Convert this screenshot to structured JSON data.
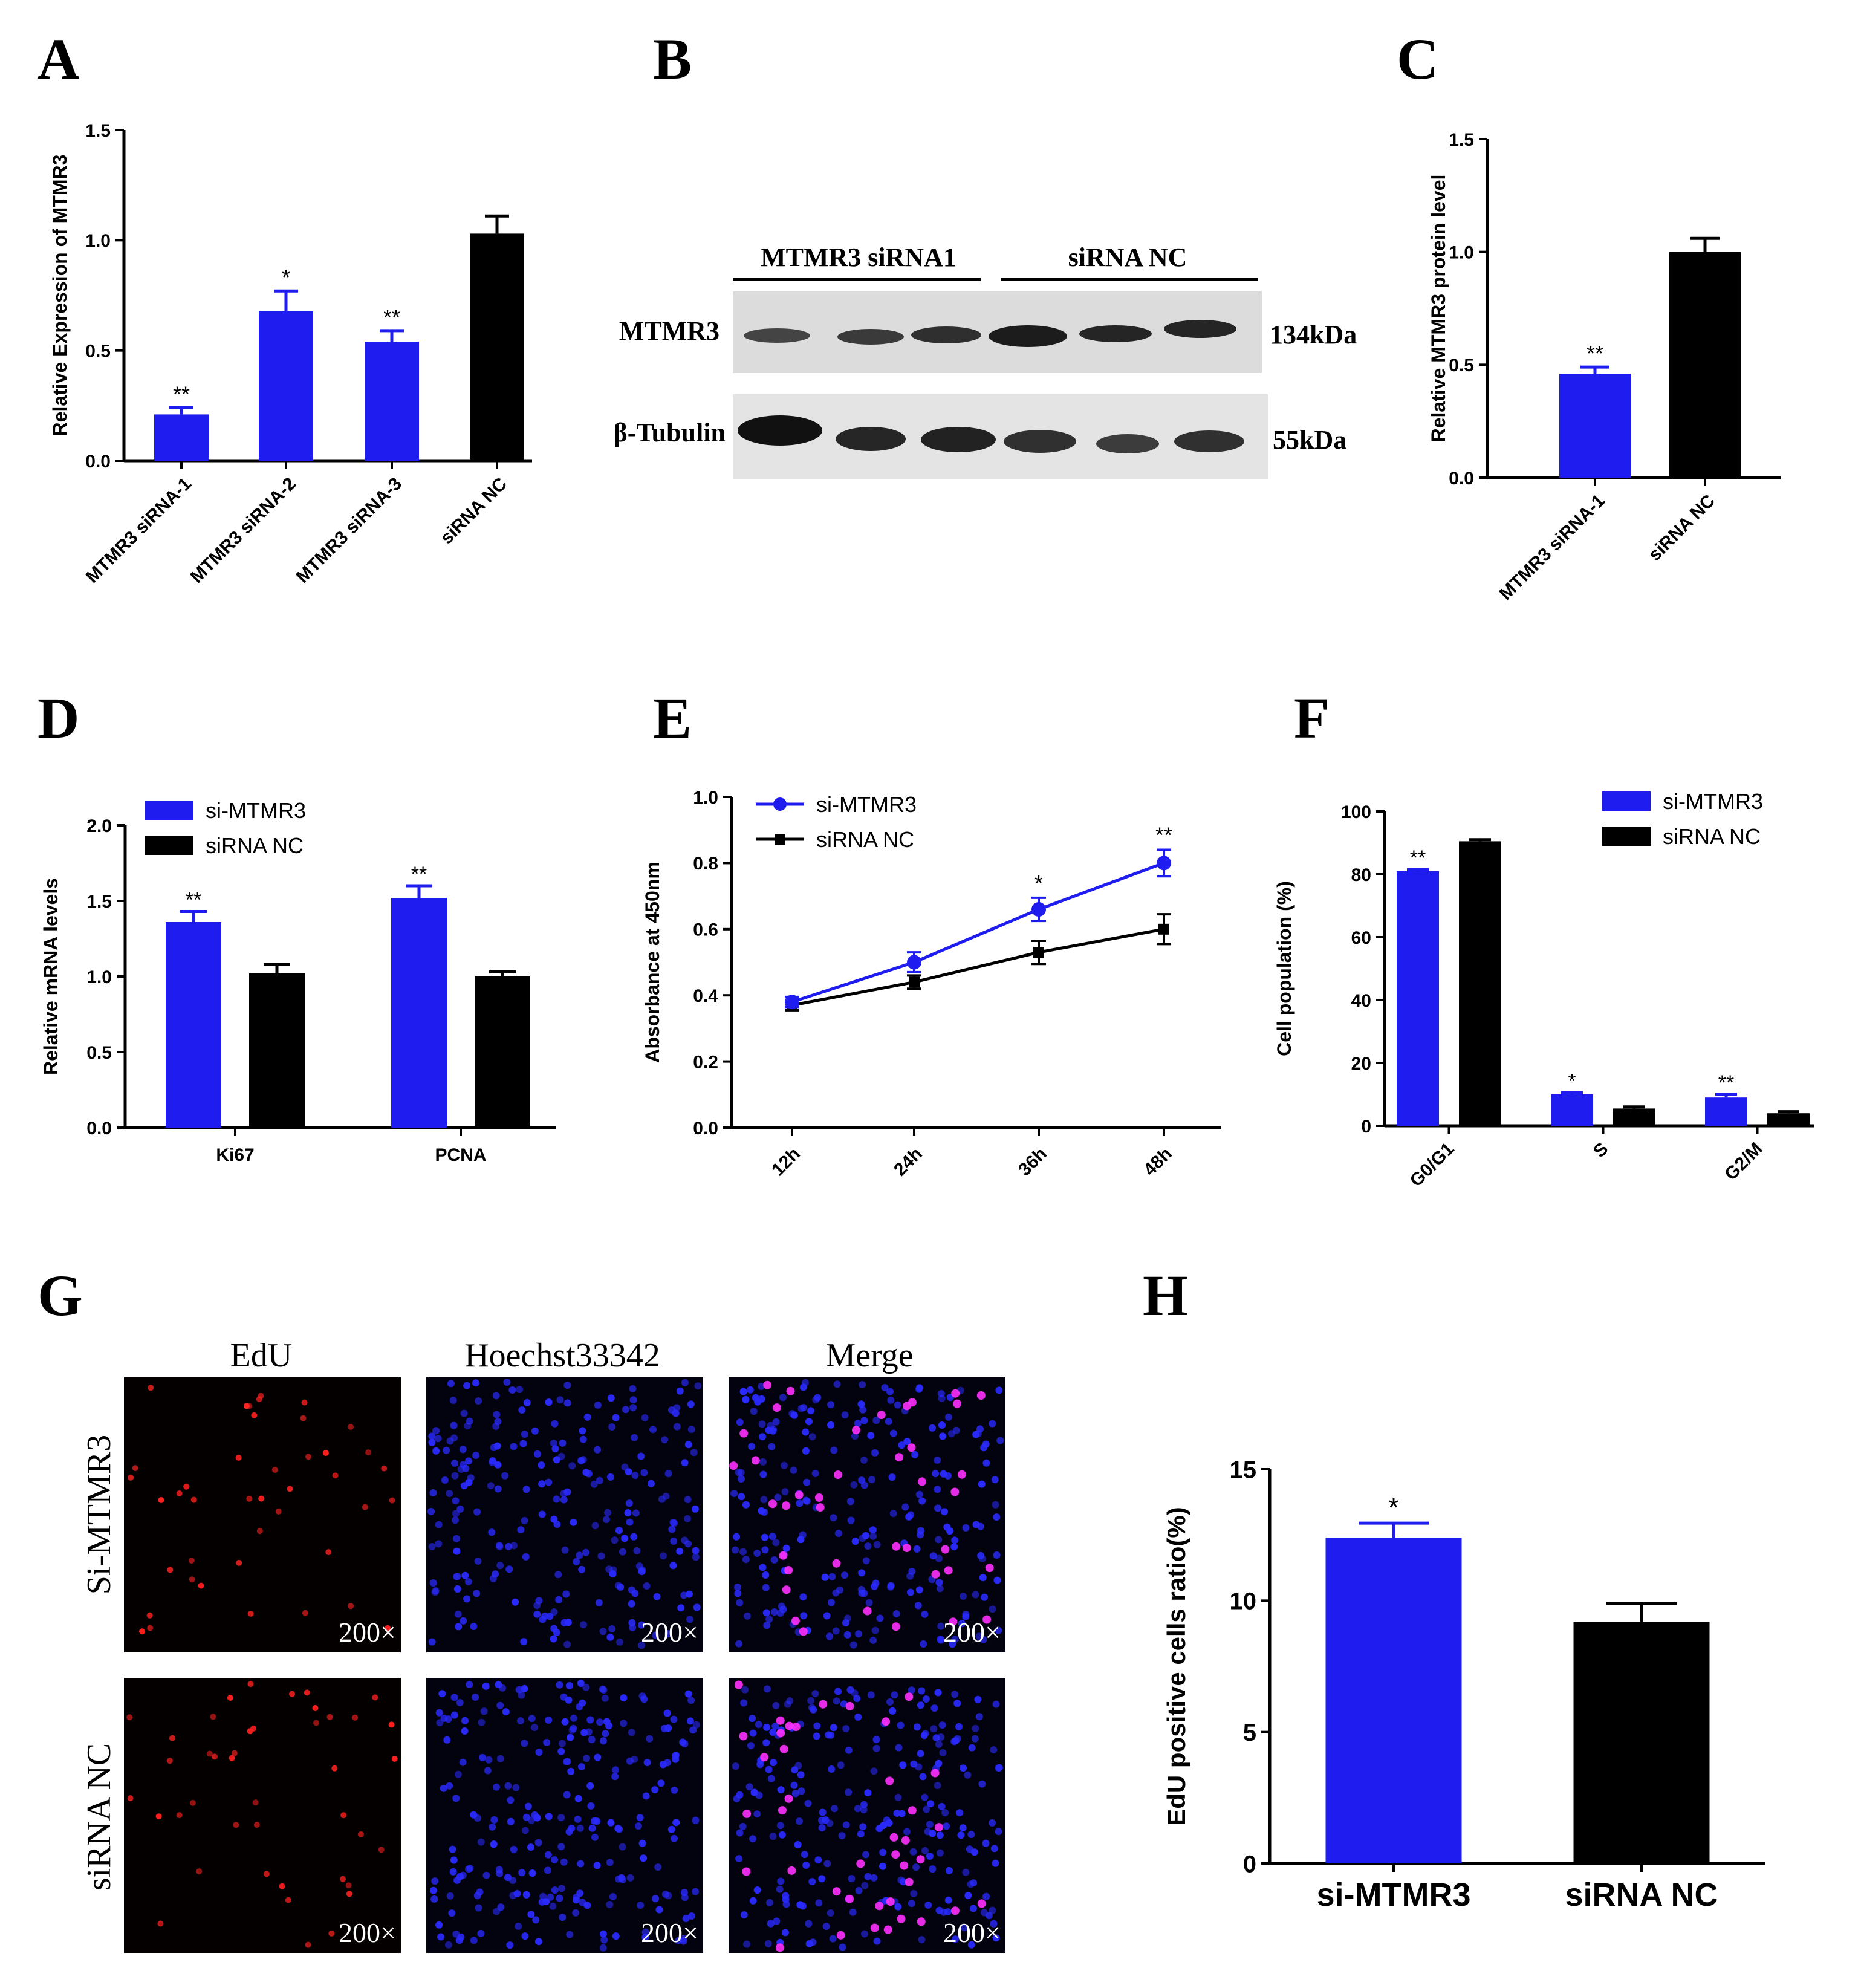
{
  "colors": {
    "blue": "#1f1cf0",
    "black": "#000000",
    "edu": "#ff2020",
    "hoechst": "#2a2aff",
    "merge": "#ff30ff"
  },
  "panel_letters": [
    "A",
    "B",
    "C",
    "D",
    "E",
    "F",
    "G",
    "H"
  ],
  "western_blot": {
    "group_labels": [
      "MTMR3 siRNA1",
      "siRNA NC"
    ],
    "row_labels": [
      "MTMR3",
      "β-Tubulin"
    ],
    "sizes": [
      "134kDa",
      "55kDa"
    ]
  },
  "microscopy": {
    "column_labels": [
      "EdU",
      "Hoechst33342",
      "Merge"
    ],
    "row_labels": [
      "Si-MTMR3",
      "siRNA NC"
    ],
    "magnification": "200×"
  },
  "chart_data": [
    {
      "panel": "A",
      "type": "bar",
      "categories": [
        "MTMR3 siRNA-1",
        "MTMR3 siRNA-2",
        "MTMR3 siRNA-3",
        "siRNA NC"
      ],
      "values": [
        0.21,
        0.68,
        0.54,
        1.03
      ],
      "errors": [
        0.03,
        0.09,
        0.05,
        0.08
      ],
      "significance": [
        "**",
        "*",
        "**",
        ""
      ],
      "colors": [
        "blue",
        "blue",
        "blue",
        "black"
      ],
      "ylabel": "Relative Expression of MTMR3",
      "ylim": [
        0,
        1.5
      ],
      "yticks": [
        "0.0",
        "0.5",
        "1.0",
        "1.5"
      ]
    },
    {
      "panel": "C",
      "type": "bar",
      "categories": [
        "MTMR3 siRNA-1",
        "siRNA NC"
      ],
      "values": [
        0.46,
        1.0
      ],
      "errors": [
        0.03,
        0.06
      ],
      "significance": [
        "**",
        ""
      ],
      "colors": [
        "blue",
        "black"
      ],
      "ylabel": "Relative MTMR3 protein level",
      "ylim": [
        0,
        1.5
      ],
      "yticks": [
        "0.0",
        "0.5",
        "1.0",
        "1.5"
      ]
    },
    {
      "panel": "D",
      "type": "bar",
      "categories": [
        "Ki67",
        "PCNA"
      ],
      "series": [
        {
          "name": "si-MTMR3",
          "values": [
            1.36,
            1.52
          ],
          "errors": [
            0.07,
            0.08
          ],
          "significance": [
            "**",
            "**"
          ]
        },
        {
          "name": "siRNA NC",
          "values": [
            1.02,
            1.0
          ],
          "errors": [
            0.06,
            0.03
          ],
          "significance": [
            "",
            ""
          ]
        }
      ],
      "ylabel": "Relative mRNA levels",
      "ylim": [
        0,
        2.0
      ],
      "yticks": [
        "0.0",
        "0.5",
        "1.0",
        "1.5",
        "2.0"
      ],
      "legend": "top-left"
    },
    {
      "panel": "E",
      "type": "line",
      "x": [
        "12h",
        "24h",
        "36h",
        "48h"
      ],
      "series": [
        {
          "name": "si-MTMR3",
          "values": [
            0.38,
            0.5,
            0.66,
            0.8
          ],
          "errors": [
            0.015,
            0.03,
            0.035,
            0.04
          ],
          "significance": [
            "",
            "",
            "*",
            "**"
          ]
        },
        {
          "name": "siRNA NC",
          "values": [
            0.37,
            0.44,
            0.53,
            0.6
          ],
          "errors": [
            0.015,
            0.02,
            0.035,
            0.045
          ],
          "significance": [
            "",
            "",
            "",
            ""
          ]
        }
      ],
      "ylabel": "Absorbance at 450nm",
      "ylim": [
        0,
        1.0
      ],
      "yticks": [
        "0.0",
        "0.2",
        "0.4",
        "0.6",
        "0.8",
        "1.0"
      ],
      "legend": "top-left"
    },
    {
      "panel": "F",
      "type": "bar",
      "categories": [
        "G0/G1",
        "S",
        "G2/M"
      ],
      "series": [
        {
          "name": "si-MTMR3",
          "values": [
            81,
            10,
            9
          ],
          "errors": [
            0.5,
            0.5,
            1.0
          ],
          "significance": [
            "**",
            "*",
            "**"
          ]
        },
        {
          "name": "siRNA NC",
          "values": [
            90.5,
            5.5,
            4
          ],
          "errors": [
            0.5,
            0.5,
            0.5
          ],
          "significance": [
            "",
            "",
            ""
          ]
        }
      ],
      "ylabel": "Cell population (%)",
      "ylim": [
        0,
        100
      ],
      "yticks": [
        "0",
        "20",
        "40",
        "60",
        "80",
        "100"
      ],
      "legend": "top-right"
    },
    {
      "panel": "H",
      "type": "bar",
      "categories": [
        "si-MTMR3",
        "siRNA NC"
      ],
      "values": [
        12.4,
        9.2
      ],
      "errors": [
        0.55,
        0.7
      ],
      "significance": [
        "*",
        ""
      ],
      "colors": [
        "blue",
        "black"
      ],
      "ylabel": "EdU positive cells ratio(%)",
      "ylim": [
        0,
        15
      ],
      "yticks": [
        "0",
        "5",
        "10",
        "15"
      ]
    }
  ]
}
